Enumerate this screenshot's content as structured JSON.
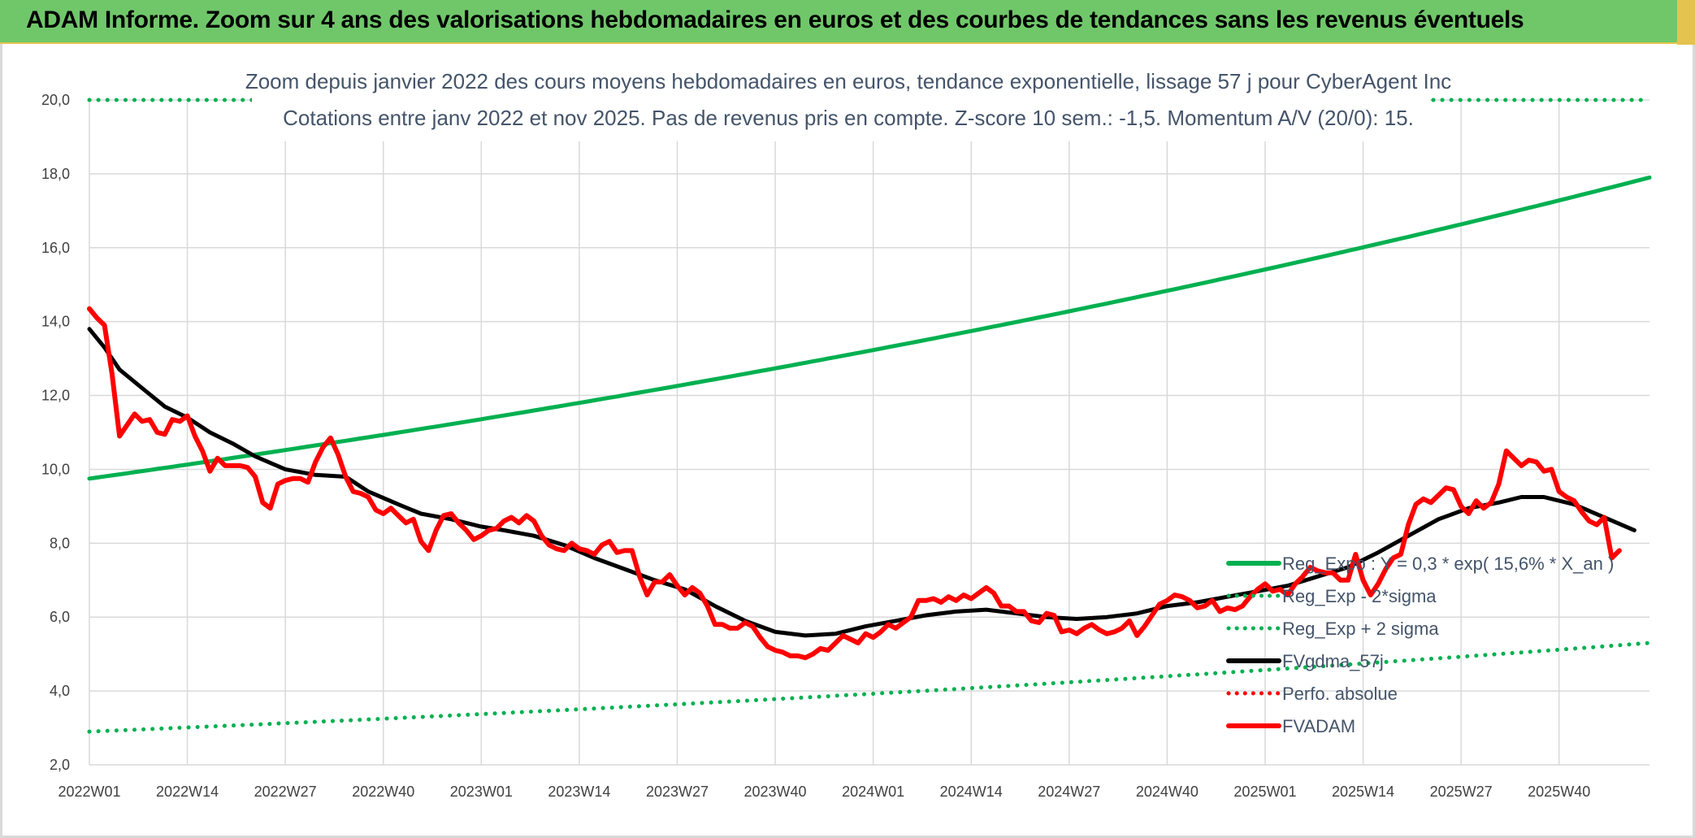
{
  "header": {
    "title": "ADAM Informe. Zoom sur 4 ans des valorisations hebdomadaires en euros et des courbes de tendances sans les revenus éventuels"
  },
  "colors": {
    "header_bg": "#70c76a",
    "header_accent": "#e4c34e",
    "trend_green": "#00b050",
    "price_red": "#ff0000",
    "smooth_black": "#000000",
    "gridline": "#d9d9d9"
  },
  "chart_data": {
    "type": "line",
    "title_lines": [
      "Zoom depuis janvier 2022 des cours moyens hebdomadaires en euros, tendance exponentielle, lissage 57 j pour CyberAgent Inc",
      "Cotations entre janv 2022 et nov 2025. Pas de revenus pris en compte. Z-score 10 sem.: -1,5. Momentum A/V (20/0): 15."
    ],
    "xlabel": "",
    "ylabel": "",
    "ylim": [
      2,
      20
    ],
    "yticks": [
      "2,0",
      "4,0",
      "6,0",
      "8,0",
      "10,0",
      "12,0",
      "14,0",
      "16,0",
      "18,0",
      "20,0"
    ],
    "xticks": [
      "2022W01",
      "2022W14",
      "2022W27",
      "2022W40",
      "2023W01",
      "2023W14",
      "2023W27",
      "2023W40",
      "2024W01",
      "2024W14",
      "2024W27",
      "2024W40",
      "2025W01",
      "2025W14",
      "2025W27",
      "2025W40"
    ],
    "x_week_count": 208,
    "grid": true,
    "legend_position": "bottom-right, inside plot",
    "legend": [
      {
        "label": "Reg_Expo : Y = 0,3 * exp( 15,6% *  X_an )",
        "color": "#00b050",
        "style": "solid"
      },
      {
        "label": "Reg_Exp - 2*sigma",
        "color": "#00b050",
        "style": "dotted"
      },
      {
        "label": "Reg_Exp + 2 sigma",
        "color": "#00b050",
        "style": "dotted"
      },
      {
        "label": "FVgdma_57j",
        "color": "#000000",
        "style": "solid"
      },
      {
        "label": "Perfo. absolue",
        "color": "#ff0000",
        "style": "dotted"
      },
      {
        "label": "FVADAM",
        "color": "#ff0000",
        "style": "solid"
      }
    ],
    "series": [
      {
        "name": "Reg_Expo : Y = 0,3 * exp( 15,6% *  X_an )",
        "kind": "exponential",
        "start_value": 9.75,
        "end_value": 17.9
      },
      {
        "name": "Reg_Exp - 2*sigma",
        "kind": "exponential",
        "start_value": 2.9,
        "end_value": 5.3
      },
      {
        "name": "Reg_Exp + 2 sigma",
        "kind": "exponential",
        "start_value": 20.0,
        "end_value": 20.0,
        "clipped_at_top": true
      },
      {
        "name": "FVgdma_57j",
        "kind": "points",
        "points": [
          [
            "2022W01",
            13.8
          ],
          [
            "2022W03",
            13.3
          ],
          [
            "2022W05",
            12.7
          ],
          [
            "2022W08",
            12.2
          ],
          [
            "2022W11",
            11.7
          ],
          [
            "2022W14",
            11.4
          ],
          [
            "2022W17",
            11.0
          ],
          [
            "2022W20",
            10.7
          ],
          [
            "2022W23",
            10.35
          ],
          [
            "2022W27",
            10.0
          ],
          [
            "2022W31",
            9.85
          ],
          [
            "2022W35",
            9.8
          ],
          [
            "2022W38",
            9.4
          ],
          [
            "2022W42",
            9.05
          ],
          [
            "2022W45",
            8.8
          ],
          [
            "2022W49",
            8.65
          ],
          [
            "2023W01",
            8.45
          ],
          [
            "2023W04",
            8.35
          ],
          [
            "2023W08",
            8.2
          ],
          [
            "2023W12",
            7.95
          ],
          [
            "2023W16",
            7.6
          ],
          [
            "2023W20",
            7.3
          ],
          [
            "2023W24",
            7.0
          ],
          [
            "2023W28",
            6.75
          ],
          [
            "2023W32",
            6.3
          ],
          [
            "2023W36",
            5.9
          ],
          [
            "2023W40",
            5.6
          ],
          [
            "2023W44",
            5.5
          ],
          [
            "2023W48",
            5.55
          ],
          [
            "2023W52",
            5.75
          ],
          [
            "2024W04",
            5.9
          ],
          [
            "2024W08",
            6.05
          ],
          [
            "2024W12",
            6.15
          ],
          [
            "2024W16",
            6.2
          ],
          [
            "2024W20",
            6.1
          ],
          [
            "2024W24",
            6.0
          ],
          [
            "2024W28",
            5.95
          ],
          [
            "2024W32",
            6.0
          ],
          [
            "2024W36",
            6.1
          ],
          [
            "2024W40",
            6.3
          ],
          [
            "2024W44",
            6.4
          ],
          [
            "2024W48",
            6.55
          ],
          [
            "2024W52",
            6.7
          ],
          [
            "2025W04",
            6.85
          ],
          [
            "2025W08",
            7.1
          ],
          [
            "2025W12",
            7.35
          ],
          [
            "2025W16",
            7.75
          ],
          [
            "2025W20",
            8.2
          ],
          [
            "2025W24",
            8.65
          ],
          [
            "2025W28",
            8.95
          ],
          [
            "2025W32",
            9.1
          ],
          [
            "2025W35",
            9.25
          ],
          [
            "2025W38",
            9.25
          ],
          [
            "2025W42",
            9.05
          ],
          [
            "2025W46",
            8.7
          ],
          [
            "2025W50",
            8.35
          ]
        ]
      },
      {
        "name": "FVADAM",
        "kind": "points",
        "points": [
          [
            "2022W01",
            14.35
          ],
          [
            "2022W02",
            14.1
          ],
          [
            "2022W03",
            13.9
          ],
          [
            "2022W04",
            12.6
          ],
          [
            "2022W05",
            10.9
          ],
          [
            "2022W06",
            11.2
          ],
          [
            "2022W07",
            11.5
          ],
          [
            "2022W08",
            11.3
          ],
          [
            "2022W09",
            11.35
          ],
          [
            "2022W10",
            11.0
          ],
          [
            "2022W11",
            10.95
          ],
          [
            "2022W12",
            11.35
          ],
          [
            "2022W13",
            11.3
          ],
          [
            "2022W14",
            11.45
          ],
          [
            "2022W15",
            10.9
          ],
          [
            "2022W16",
            10.5
          ],
          [
            "2022W17",
            9.95
          ],
          [
            "2022W18",
            10.3
          ],
          [
            "2022W19",
            10.1
          ],
          [
            "2022W20",
            10.1
          ],
          [
            "2022W21",
            10.1
          ],
          [
            "2022W22",
            10.05
          ],
          [
            "2022W23",
            9.8
          ],
          [
            "2022W24",
            9.1
          ],
          [
            "2022W25",
            8.95
          ],
          [
            "2022W26",
            9.6
          ],
          [
            "2022W27",
            9.7
          ],
          [
            "2022W28",
            9.75
          ],
          [
            "2022W29",
            9.75
          ],
          [
            "2022W30",
            9.65
          ],
          [
            "2022W31",
            10.2
          ],
          [
            "2022W32",
            10.6
          ],
          [
            "2022W33",
            10.85
          ],
          [
            "2022W34",
            10.4
          ],
          [
            "2022W35",
            9.8
          ],
          [
            "2022W36",
            9.4
          ],
          [
            "2022W37",
            9.35
          ],
          [
            "2022W38",
            9.25
          ],
          [
            "2022W39",
            8.9
          ],
          [
            "2022W40",
            8.8
          ],
          [
            "2022W41",
            8.95
          ],
          [
            "2022W42",
            8.75
          ],
          [
            "2022W43",
            8.55
          ],
          [
            "2022W44",
            8.65
          ],
          [
            "2022W45",
            8.05
          ],
          [
            "2022W46",
            7.8
          ],
          [
            "2022W47",
            8.35
          ],
          [
            "2022W48",
            8.75
          ],
          [
            "2022W49",
            8.8
          ],
          [
            "2022W50",
            8.55
          ],
          [
            "2022W51",
            8.35
          ],
          [
            "2022W52",
            8.1
          ],
          [
            "2023W01",
            8.2
          ],
          [
            "2023W02",
            8.35
          ],
          [
            "2023W03",
            8.4
          ],
          [
            "2023W04",
            8.6
          ],
          [
            "2023W05",
            8.7
          ],
          [
            "2023W06",
            8.55
          ],
          [
            "2023W07",
            8.75
          ],
          [
            "2023W08",
            8.6
          ],
          [
            "2023W09",
            8.2
          ],
          [
            "2023W10",
            7.95
          ],
          [
            "2023W11",
            7.85
          ],
          [
            "2023W12",
            7.8
          ],
          [
            "2023W13",
            8.0
          ],
          [
            "2023W14",
            7.85
          ],
          [
            "2023W15",
            7.8
          ],
          [
            "2023W16",
            7.7
          ],
          [
            "2023W17",
            7.95
          ],
          [
            "2023W18",
            8.05
          ],
          [
            "2023W19",
            7.75
          ],
          [
            "2023W20",
            7.8
          ],
          [
            "2023W21",
            7.8
          ],
          [
            "2023W22",
            7.1
          ],
          [
            "2023W23",
            6.6
          ],
          [
            "2023W24",
            6.95
          ],
          [
            "2023W25",
            6.95
          ],
          [
            "2023W26",
            7.15
          ],
          [
            "2023W27",
            6.85
          ],
          [
            "2023W28",
            6.6
          ],
          [
            "2023W29",
            6.8
          ],
          [
            "2023W30",
            6.65
          ],
          [
            "2023W31",
            6.3
          ],
          [
            "2023W32",
            5.8
          ],
          [
            "2023W33",
            5.8
          ],
          [
            "2023W34",
            5.7
          ],
          [
            "2023W35",
            5.7
          ],
          [
            "2023W36",
            5.85
          ],
          [
            "2023W37",
            5.75
          ],
          [
            "2023W38",
            5.45
          ],
          [
            "2023W39",
            5.2
          ],
          [
            "2023W40",
            5.1
          ],
          [
            "2023W41",
            5.05
          ],
          [
            "2023W42",
            4.95
          ],
          [
            "2023W43",
            4.95
          ],
          [
            "2023W44",
            4.9
          ],
          [
            "2023W45",
            5.0
          ],
          [
            "2023W46",
            5.15
          ],
          [
            "2023W47",
            5.1
          ],
          [
            "2023W48",
            5.3
          ],
          [
            "2023W49",
            5.5
          ],
          [
            "2023W50",
            5.4
          ],
          [
            "2023W51",
            5.3
          ],
          [
            "2023W52",
            5.55
          ],
          [
            "2024W01",
            5.45
          ],
          [
            "2024W02",
            5.6
          ],
          [
            "2024W03",
            5.8
          ],
          [
            "2024W04",
            5.7
          ],
          [
            "2024W05",
            5.85
          ],
          [
            "2024W06",
            6.0
          ],
          [
            "2024W07",
            6.45
          ],
          [
            "2024W08",
            6.45
          ],
          [
            "2024W09",
            6.5
          ],
          [
            "2024W10",
            6.4
          ],
          [
            "2024W11",
            6.55
          ],
          [
            "2024W12",
            6.45
          ],
          [
            "2024W13",
            6.6
          ],
          [
            "2024W14",
            6.5
          ],
          [
            "2024W15",
            6.65
          ],
          [
            "2024W16",
            6.8
          ],
          [
            "2024W17",
            6.65
          ],
          [
            "2024W18",
            6.3
          ],
          [
            "2024W19",
            6.3
          ],
          [
            "2024W20",
            6.15
          ],
          [
            "2024W21",
            6.15
          ],
          [
            "2024W22",
            5.9
          ],
          [
            "2024W23",
            5.85
          ],
          [
            "2024W24",
            6.1
          ],
          [
            "2024W25",
            6.05
          ],
          [
            "2024W26",
            5.6
          ],
          [
            "2024W27",
            5.65
          ],
          [
            "2024W28",
            5.55
          ],
          [
            "2024W29",
            5.7
          ],
          [
            "2024W30",
            5.8
          ],
          [
            "2024W31",
            5.65
          ],
          [
            "2024W32",
            5.55
          ],
          [
            "2024W33",
            5.6
          ],
          [
            "2024W34",
            5.7
          ],
          [
            "2024W35",
            5.9
          ],
          [
            "2024W36",
            5.5
          ],
          [
            "2024W37",
            5.75
          ],
          [
            "2024W38",
            6.05
          ],
          [
            "2024W39",
            6.35
          ],
          [
            "2024W40",
            6.45
          ],
          [
            "2024W41",
            6.6
          ],
          [
            "2024W42",
            6.55
          ],
          [
            "2024W43",
            6.45
          ],
          [
            "2024W44",
            6.25
          ],
          [
            "2024W45",
            6.3
          ],
          [
            "2024W46",
            6.45
          ],
          [
            "2024W47",
            6.15
          ],
          [
            "2024W48",
            6.25
          ],
          [
            "2024W49",
            6.2
          ],
          [
            "2024W50",
            6.3
          ],
          [
            "2024W51",
            6.55
          ],
          [
            "2024W52",
            6.75
          ],
          [
            "2025W01",
            6.9
          ],
          [
            "2025W02",
            6.7
          ],
          [
            "2025W03",
            6.75
          ],
          [
            "2025W04",
            6.6
          ],
          [
            "2025W05",
            6.9
          ],
          [
            "2025W06",
            7.1
          ],
          [
            "2025W07",
            7.35
          ],
          [
            "2025W08",
            7.25
          ],
          [
            "2025W09",
            7.2
          ],
          [
            "2025W10",
            7.2
          ],
          [
            "2025W11",
            7.0
          ],
          [
            "2025W12",
            7.0
          ],
          [
            "2025W13",
            7.7
          ],
          [
            "2025W14",
            7.0
          ],
          [
            "2025W15",
            6.6
          ],
          [
            "2025W16",
            6.9
          ],
          [
            "2025W17",
            7.3
          ],
          [
            "2025W18",
            7.6
          ],
          [
            "2025W19",
            7.7
          ],
          [
            "2025W20",
            8.5
          ],
          [
            "2025W21",
            9.05
          ],
          [
            "2025W22",
            9.2
          ],
          [
            "2025W23",
            9.1
          ],
          [
            "2025W24",
            9.3
          ],
          [
            "2025W25",
            9.5
          ],
          [
            "2025W26",
            9.45
          ],
          [
            "2025W27",
            9.0
          ],
          [
            "2025W28",
            8.8
          ],
          [
            "2025W29",
            9.15
          ],
          [
            "2025W30",
            8.95
          ],
          [
            "2025W31",
            9.1
          ],
          [
            "2025W32",
            9.6
          ],
          [
            "2025W33",
            10.5
          ],
          [
            "2025W34",
            10.3
          ],
          [
            "2025W35",
            10.1
          ],
          [
            "2025W36",
            10.25
          ],
          [
            "2025W37",
            10.2
          ],
          [
            "2025W38",
            9.95
          ],
          [
            "2025W39",
            10.0
          ],
          [
            "2025W40",
            9.4
          ],
          [
            "2025W41",
            9.25
          ],
          [
            "2025W42",
            9.15
          ],
          [
            "2025W43",
            8.85
          ],
          [
            "2025W44",
            8.6
          ],
          [
            "2025W45",
            8.5
          ],
          [
            "2025W46",
            8.7
          ],
          [
            "2025W47",
            7.6
          ],
          [
            "2025W48",
            7.8
          ]
        ]
      },
      {
        "name": "Perfo. absolue",
        "kind": "hidden",
        "points": []
      }
    ]
  }
}
